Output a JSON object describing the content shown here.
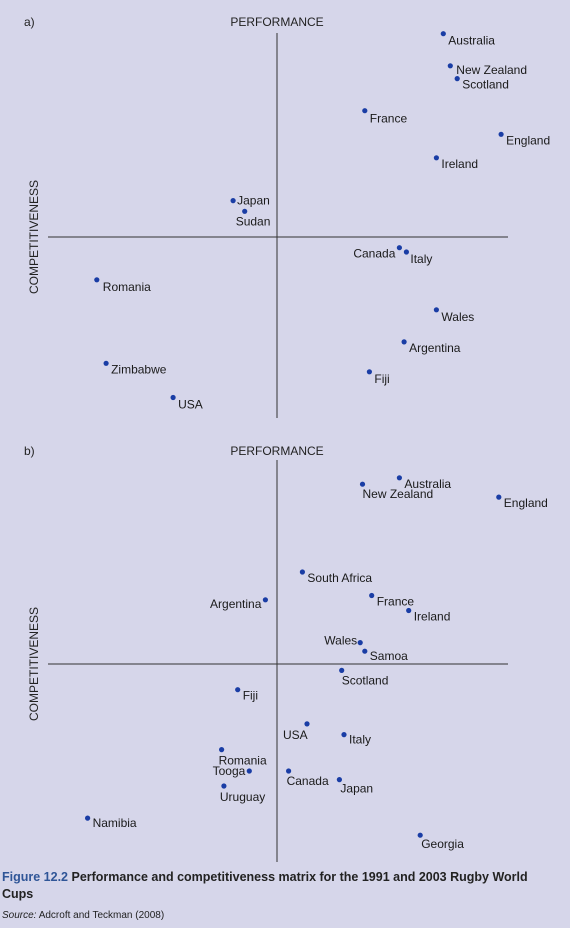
{
  "chart_data": [
    {
      "type": "scatter",
      "panel_label": "a)",
      "ylabel": "PERFORMANCE",
      "xlabel": "COMPETITIVENESS",
      "grid": false,
      "legend": "none",
      "points": [
        {
          "label": "Australia",
          "x": 0.72,
          "y": 0.95
        },
        {
          "label": "New Zealand",
          "x": 0.75,
          "y": 0.8
        },
        {
          "label": "Scotland",
          "x": 0.78,
          "y": 0.74
        },
        {
          "label": "France",
          "x": 0.38,
          "y": 0.59
        },
        {
          "label": "England",
          "x": 0.97,
          "y": 0.48
        },
        {
          "label": "Ireland",
          "x": 0.69,
          "y": 0.37
        },
        {
          "label": "Japan",
          "x": -0.19,
          "y": 0.17
        },
        {
          "label": "Sudan",
          "x": -0.14,
          "y": 0.12
        },
        {
          "label": "Canada",
          "x": 0.53,
          "y": -0.05
        },
        {
          "label": "Italy",
          "x": 0.56,
          "y": -0.07
        },
        {
          "label": "Romania",
          "x": -0.78,
          "y": -0.2
        },
        {
          "label": "Wales",
          "x": 0.69,
          "y": -0.34
        },
        {
          "label": "Argentina",
          "x": 0.55,
          "y": -0.49
        },
        {
          "label": "Zimbabwe",
          "x": -0.74,
          "y": -0.59
        },
        {
          "label": "Fiji",
          "x": 0.4,
          "y": -0.63
        },
        {
          "label": "USA",
          "x": -0.45,
          "y": -0.75
        }
      ]
    },
    {
      "type": "scatter",
      "panel_label": "b)",
      "ylabel": "PERFORMANCE",
      "xlabel": "COMPETITIVENESS",
      "grid": false,
      "legend": "none",
      "points": [
        {
          "label": "Australia",
          "x": 0.53,
          "y": 0.87
        },
        {
          "label": "New Zealand",
          "x": 0.37,
          "y": 0.84
        },
        {
          "label": "England",
          "x": 0.96,
          "y": 0.78
        },
        {
          "label": "South Africa",
          "x": 0.11,
          "y": 0.43
        },
        {
          "label": "France",
          "x": 0.41,
          "y": 0.32
        },
        {
          "label": "Argentina",
          "x": -0.05,
          "y": 0.3
        },
        {
          "label": "Ireland",
          "x": 0.57,
          "y": 0.25
        },
        {
          "label": "Wales",
          "x": 0.36,
          "y": 0.1
        },
        {
          "label": "Samoa",
          "x": 0.38,
          "y": 0.06
        },
        {
          "label": "Scotland",
          "x": 0.28,
          "y": -0.03
        },
        {
          "label": "Fiji",
          "x": -0.17,
          "y": -0.12
        },
        {
          "label": "USA",
          "x": 0.13,
          "y": -0.28
        },
        {
          "label": "Italy",
          "x": 0.29,
          "y": -0.33
        },
        {
          "label": "Romania",
          "x": -0.24,
          "y": -0.4
        },
        {
          "label": "Tooga",
          "x": -0.12,
          "y": -0.5
        },
        {
          "label": "Canada",
          "x": 0.05,
          "y": -0.5
        },
        {
          "label": "Japan",
          "x": 0.27,
          "y": -0.54
        },
        {
          "label": "Uruguay",
          "x": -0.23,
          "y": -0.57
        },
        {
          "label": "Namibia",
          "x": -0.82,
          "y": -0.72
        },
        {
          "label": "Georgia",
          "x": 0.62,
          "y": -0.8
        }
      ]
    }
  ],
  "caption": {
    "figure_number": "Figure 12.2",
    "text": "Performance and competitiveness matrix for the 1991 and 2003 Rugby World Cups"
  },
  "source": {
    "label": "Source:",
    "text": "Adcroft and Teckman (2008)"
  },
  "colors": {
    "background": "#d6d6ea",
    "marker": "#1a3da5",
    "axis": "#333333",
    "caption_accent": "#2f5597"
  }
}
